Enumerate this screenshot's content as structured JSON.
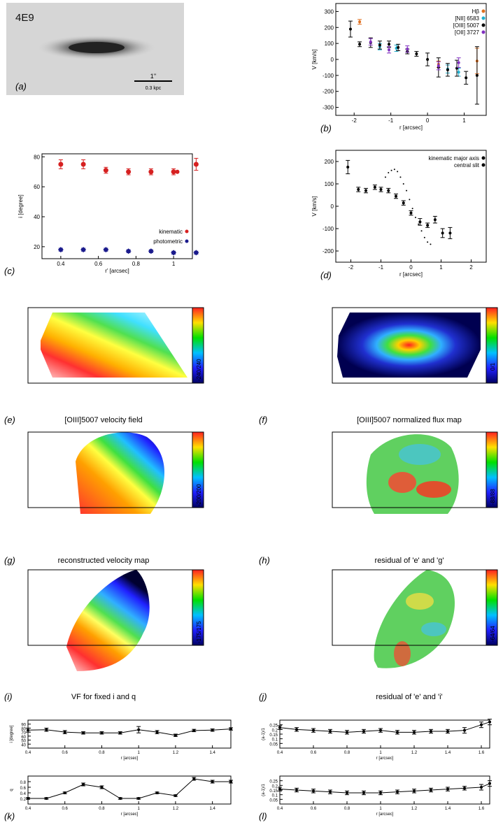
{
  "figure": {
    "galaxy_id": "4E9",
    "scale_bar": {
      "arcsec_label": "1''",
      "kpc_label": "0.3 kpc"
    },
    "panel_labels": [
      "(a)",
      "(b)",
      "(c)",
      "(d)",
      "(e)",
      "(f)",
      "(g)",
      "(h)",
      "(i)",
      "(j)",
      "(k)",
      "(l)"
    ],
    "panel_titles": {
      "e": "[OIII]5007 velocity field",
      "f": "[OIII]5007 normalized flux map",
      "g": "reconstructed velocity map",
      "h": "residual of 'e' and 'g'",
      "i": "VF for fixed i and q",
      "j": "residual of 'e' and 'i'"
    },
    "map_colorbars": {
      "e": "-240/240",
      "f": "0/1",
      "g": "-200/200",
      "h": "-88/88",
      "i": "-175/175",
      "j": "-64/64"
    },
    "colors": {
      "cool": "#00008b",
      "hot": "#ff0000",
      "kinematic": "#d62020",
      "photometric": "#1a1a8c"
    }
  },
  "chart_data": [
    {
      "id": "b",
      "type": "scatter",
      "xlabel": "r [arcsec]",
      "ylabel": "V [km/s]",
      "xlim": [
        -2.5,
        1.6
      ],
      "ylim": [
        -350,
        350
      ],
      "xticks": [
        -2,
        -1,
        0,
        1
      ],
      "yticks": [
        -300,
        -200,
        -100,
        0,
        100,
        200,
        300
      ],
      "legend": "top-right",
      "series": [
        {
          "name": "Hβ",
          "color": "#e07020",
          "x": [
            -1.85,
            0.3,
            1.35
          ],
          "y": [
            235,
            -30,
            -10
          ],
          "err": [
            15,
            20,
            80
          ]
        },
        {
          "name": "[NII] 6583",
          "color": "#20b0d0",
          "x": [
            -1.3,
            -0.85,
            0.55,
            0.85
          ],
          "y": [
            80,
            70,
            -60,
            -80
          ],
          "err": [
            20,
            20,
            25,
            25
          ]
        },
        {
          "name": "[OIII] 5007",
          "color": "#000000",
          "x": [
            -2.1,
            -1.85,
            -1.55,
            -1.3,
            -1.05,
            -0.8,
            -0.55,
            -0.3,
            0.0,
            0.3,
            0.55,
            0.8,
            1.05,
            1.35
          ],
          "y": [
            190,
            95,
            105,
            90,
            95,
            75,
            50,
            35,
            0,
            -50,
            -65,
            -55,
            -115,
            -100
          ],
          "err": [
            50,
            15,
            30,
            25,
            20,
            20,
            15,
            15,
            40,
            60,
            40,
            50,
            40,
            180
          ]
        },
        {
          "name": "[OII] 3727",
          "color": "#8030c0",
          "x": [
            -1.55,
            -1.05,
            -0.55,
            0.3,
            0.85
          ],
          "y": [
            110,
            60,
            65,
            -40,
            -20
          ],
          "err": [
            20,
            20,
            20,
            25,
            30
          ]
        }
      ]
    },
    {
      "id": "c",
      "type": "scatter",
      "xlabel": "r' [arcsec]",
      "ylabel": "i [degree]",
      "xlim": [
        0.3,
        1.1
      ],
      "ylim": [
        12,
        82
      ],
      "xticks": [
        0.4,
        0.6,
        0.8,
        1.0
      ],
      "yticks": [
        20,
        40,
        60,
        80
      ],
      "legend": "bottom-right",
      "series": [
        {
          "name": "kinematic",
          "marker": "filled-circle",
          "x": [
            0.4,
            0.52,
            0.64,
            0.76,
            0.88,
            1.0,
            1.12
          ],
          "y": [
            75,
            75,
            71,
            70,
            70,
            70,
            75
          ],
          "err": [
            3,
            3,
            2,
            2,
            2,
            2,
            4
          ]
        },
        {
          "name": "photometric",
          "marker": "diamond",
          "x": [
            0.4,
            0.52,
            0.64,
            0.76,
            0.88,
            1.0,
            1.12
          ],
          "y": [
            18,
            18,
            18,
            17,
            17,
            16,
            16
          ],
          "err": [
            1,
            1,
            1,
            1,
            1,
            1,
            1
          ]
        }
      ],
      "extra_point": {
        "x": 1.02,
        "y": 70
      }
    },
    {
      "id": "d",
      "type": "scatter",
      "xlabel": "r [arcsec]",
      "ylabel": "V [km/s]",
      "xlim": [
        -2.5,
        2.5
      ],
      "ylim": [
        -250,
        250
      ],
      "xticks": [
        -2,
        -1,
        0,
        1,
        2
      ],
      "yticks": [
        -200,
        -100,
        0,
        100,
        200
      ],
      "legend": "top-right",
      "series": [
        {
          "name": "kinematic major axis",
          "marker": "dot",
          "x": [
            -0.85,
            -0.75,
            -0.65,
            -0.55,
            -0.45,
            -0.35,
            -0.25,
            -0.15,
            -0.05,
            0.05,
            0.15,
            0.25,
            0.35,
            0.45,
            0.55,
            0.65
          ],
          "y": [
            130,
            150,
            160,
            165,
            155,
            130,
            100,
            70,
            30,
            -10,
            -50,
            -80,
            -110,
            -140,
            -160,
            -170
          ]
        },
        {
          "name": "central slit",
          "marker": "errorbar",
          "x": [
            -2.1,
            -1.75,
            -1.5,
            -1.2,
            -1.0,
            -0.75,
            -0.5,
            -0.25,
            0.0,
            0.3,
            0.55,
            0.8,
            1.05,
            1.3
          ],
          "y": [
            175,
            75,
            70,
            85,
            75,
            70,
            45,
            15,
            -30,
            -70,
            -85,
            -60,
            -120,
            -120
          ],
          "err": [
            30,
            10,
            10,
            10,
            10,
            10,
            10,
            10,
            10,
            15,
            10,
            15,
            20,
            25
          ]
        }
      ]
    },
    {
      "id": "k",
      "type": "line",
      "xlabel": "r [arcsec]",
      "ylabel": "i [degree]",
      "xlim": [
        0.4,
        1.5
      ],
      "ylim": [
        30,
        100
      ],
      "xticks": [
        0.4,
        0.6,
        0.8,
        1.0,
        1.2,
        1.4
      ],
      "yticks": [
        40,
        50,
        60,
        70,
        80,
        90
      ],
      "x": [
        0.4,
        0.5,
        0.6,
        0.7,
        0.8,
        0.9,
        1.0,
        1.1,
        1.2,
        1.3,
        1.4,
        1.5
      ],
      "y": [
        75,
        76,
        70,
        68,
        68,
        68,
        76,
        70,
        62,
        74,
        75,
        78
      ],
      "err": [
        5,
        4,
        4,
        3,
        3,
        3,
        8,
        4,
        3,
        3,
        3,
        3
      ]
    },
    {
      "id": "l",
      "type": "line",
      "xlabel": "r [arcsec]",
      "ylabel": "(a-1)/1",
      "xlim": [
        0.4,
        1.65
      ],
      "ylim": [
        0,
        0.3
      ],
      "xticks": [
        0.4,
        0.6,
        0.8,
        1.0,
        1.2,
        1.4,
        1.6
      ],
      "yticks": [
        0.05,
        0.1,
        0.15,
        0.2,
        0.25
      ],
      "x": [
        0.4,
        0.5,
        0.6,
        0.7,
        0.8,
        0.9,
        1.0,
        1.1,
        1.2,
        1.3,
        1.4,
        1.5,
        1.6,
        1.65
      ],
      "y": [
        0.22,
        0.2,
        0.19,
        0.18,
        0.17,
        0.18,
        0.19,
        0.17,
        0.17,
        0.18,
        0.18,
        0.19,
        0.25,
        0.28
      ],
      "err": [
        0.02,
        0.02,
        0.02,
        0.02,
        0.02,
        0.02,
        0.02,
        0.02,
        0.02,
        0.02,
        0.02,
        0.03,
        0.03,
        0.03
      ]
    },
    {
      "id": "m",
      "type": "line",
      "xlabel": "r [arcsec]",
      "ylabel": "q",
      "xlim": [
        0.4,
        1.5
      ],
      "ylim": [
        0,
        1.0
      ],
      "xticks": [
        0.4,
        0.6,
        0.8,
        1.0,
        1.2,
        1.4
      ],
      "yticks": [
        0.2,
        0.4,
        0.6,
        0.8
      ],
      "x": [
        0.4,
        0.5,
        0.6,
        0.7,
        0.8,
        0.9,
        1.0,
        1.1,
        1.2,
        1.3,
        1.4,
        1.5
      ],
      "y": [
        0.2,
        0.2,
        0.4,
        0.7,
        0.6,
        0.2,
        0.2,
        0.4,
        0.3,
        0.9,
        0.8,
        0.8
      ],
      "err": [
        0.03,
        0.03,
        0.03,
        0.05,
        0.05,
        0.03,
        0.03,
        0.03,
        0.03,
        0.05,
        0.05,
        0.05
      ]
    },
    {
      "id": "n",
      "type": "line",
      "xlabel": "r [arcsec]",
      "ylabel": "(a-1)/1",
      "xlim": [
        0.4,
        1.65
      ],
      "ylim": [
        0,
        0.3
      ],
      "xticks": [
        0.4,
        0.6,
        0.8,
        1.0,
        1.2,
        1.4,
        1.6
      ],
      "yticks": [
        0.05,
        0.1,
        0.15,
        0.2,
        0.25
      ],
      "x": [
        0.4,
        0.5,
        0.6,
        0.7,
        0.8,
        0.9,
        1.0,
        1.1,
        1.2,
        1.3,
        1.4,
        1.5,
        1.6,
        1.65
      ],
      "y": [
        0.16,
        0.15,
        0.14,
        0.13,
        0.12,
        0.12,
        0.12,
        0.13,
        0.14,
        0.15,
        0.16,
        0.17,
        0.18,
        0.22
      ],
      "err": [
        0.02,
        0.02,
        0.02,
        0.02,
        0.02,
        0.02,
        0.02,
        0.02,
        0.02,
        0.02,
        0.02,
        0.02,
        0.03,
        0.03
      ]
    }
  ]
}
